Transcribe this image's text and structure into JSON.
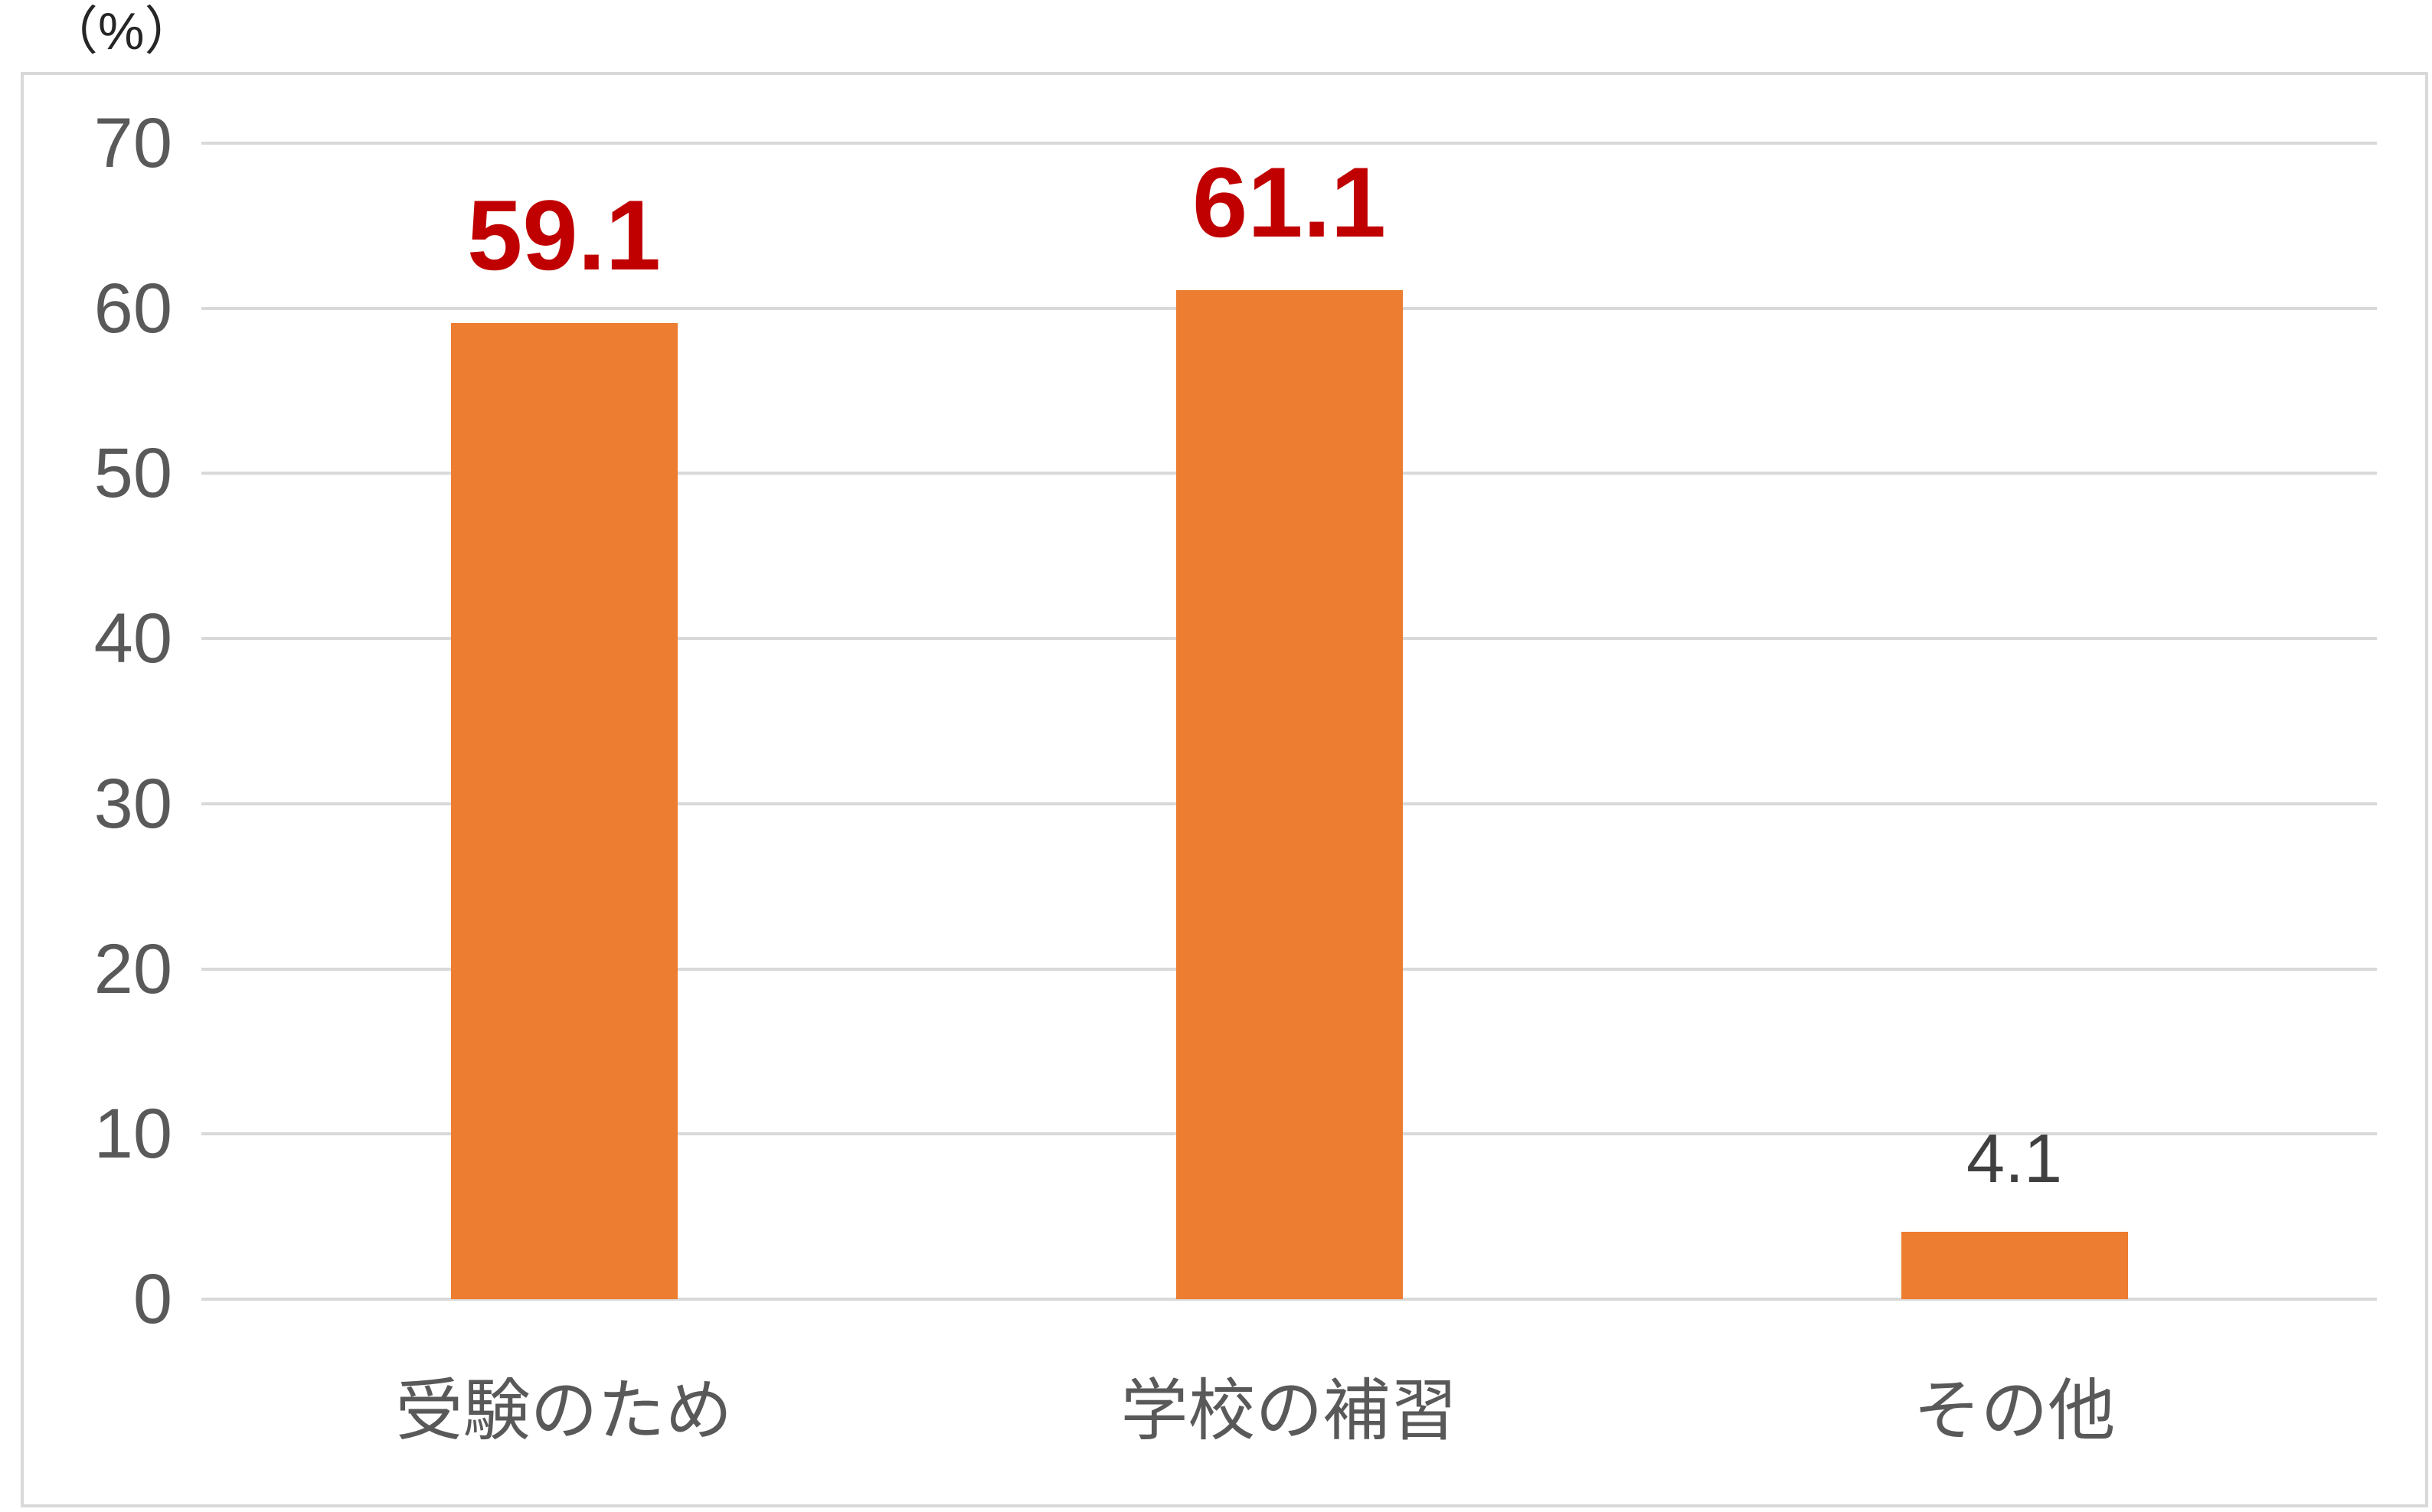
{
  "unit_label": "（%）",
  "colors": {
    "bar": "#ED7D31",
    "gridline": "#D9D9D9",
    "chart_border": "#D9D9D9",
    "axis_text": "#595959",
    "emphasis_label": "#C00000",
    "normal_label": "#404040"
  },
  "chart_data": {
    "type": "bar",
    "title": "",
    "categories": [
      "受験のため",
      "学校の補習",
      "その他"
    ],
    "values": [
      59.1,
      61.1,
      4.1
    ],
    "data_labels": [
      "59.1",
      "61.1",
      "4.1"
    ],
    "label_emphasis": [
      true,
      true,
      false
    ],
    "ylabel": "（%）",
    "ylim": [
      0,
      70
    ],
    "yticks": [
      0,
      10,
      20,
      30,
      40,
      50,
      60,
      70
    ],
    "grid": true,
    "legend": false,
    "bar_color": "#ED7D31"
  }
}
